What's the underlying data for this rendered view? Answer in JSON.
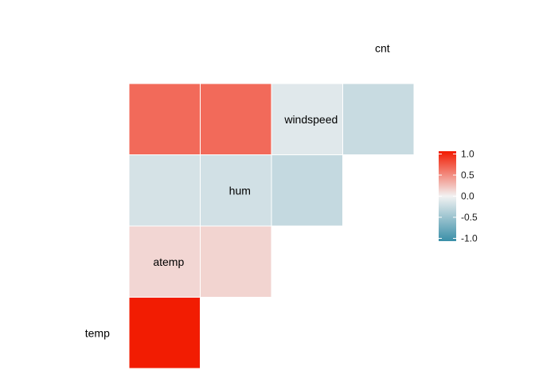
{
  "chart_data": {
    "type": "heatmap",
    "layout": "lower-triangle correlation matrix",
    "variables": [
      "temp",
      "atemp",
      "hum",
      "windspeed",
      "cnt"
    ],
    "cells": [
      {
        "row": "atemp",
        "col": "temp",
        "value": 0.99
      },
      {
        "row": "hum",
        "col": "temp",
        "value": 0.13
      },
      {
        "row": "hum",
        "col": "atemp",
        "value": 0.14
      },
      {
        "row": "windspeed",
        "col": "temp",
        "value": -0.16
      },
      {
        "row": "windspeed",
        "col": "atemp",
        "value": -0.18
      },
      {
        "row": "windspeed",
        "col": "hum",
        "value": -0.25
      },
      {
        "row": "cnt",
        "col": "temp",
        "value": 0.63
      },
      {
        "row": "cnt",
        "col": "atemp",
        "value": 0.63
      },
      {
        "row": "cnt",
        "col": "hum",
        "value": -0.1
      },
      {
        "row": "cnt",
        "col": "windspeed",
        "value": -0.23
      }
    ],
    "color_scale": {
      "min": -1.0,
      "max": 1.0,
      "low_color": "#3A8FA8",
      "mid_color": "#F2F2F2",
      "high_color": "#F21A00",
      "ticks": [
        "1.0",
        "0.5",
        "0.0",
        "-0.5",
        "-1.0"
      ],
      "tick_values": [
        1.0,
        0.5,
        0.0,
        -0.5,
        -1.0
      ]
    },
    "legend_position": "right",
    "grid": false
  }
}
